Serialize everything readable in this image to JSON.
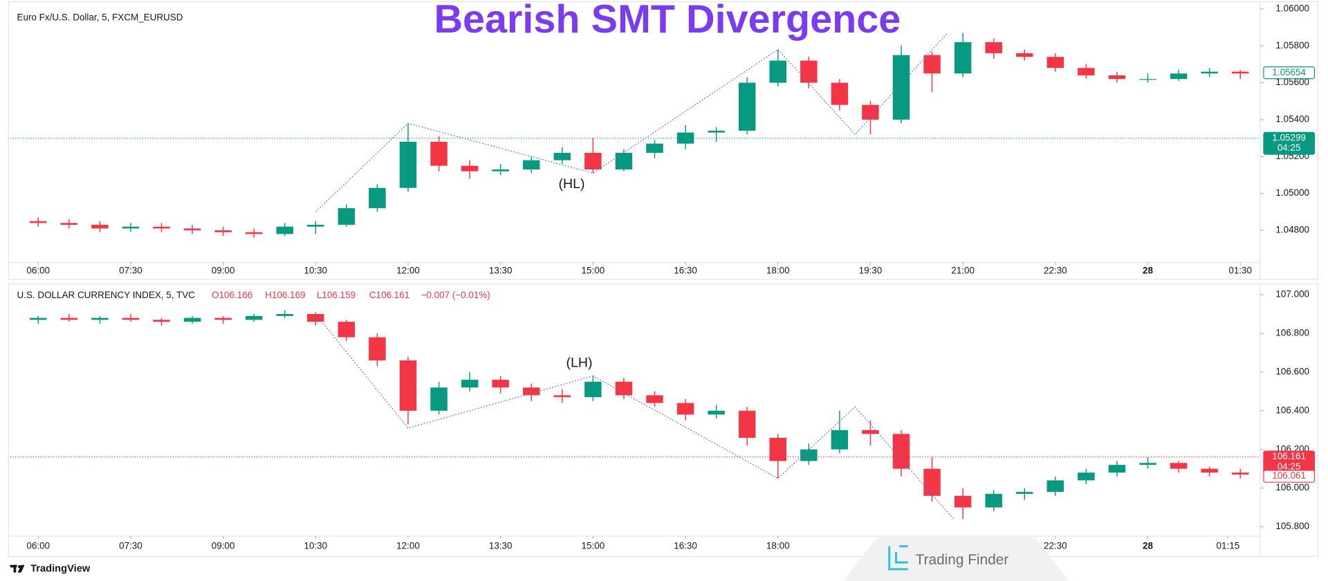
{
  "title": "Bearish SMT Divergence",
  "footer": {
    "brand": "TradingView",
    "watermark": "Trading Finder"
  },
  "chart_data": [
    {
      "type": "candlestick",
      "title": "Euro Fx/U.S. Dollar, 5, FXCM_EURUSD",
      "up_color": "#089981",
      "down_color": "#f23645",
      "line_color": "#5b6ee1",
      "grid": false,
      "xlim": [
        0.09,
        40.62
      ],
      "ylim": [
        1.0463,
        1.0603
      ],
      "yticks": [
        {
          "value": 1.048,
          "label": "1.04800"
        },
        {
          "value": 1.05,
          "label": "1.05000"
        },
        {
          "value": 1.052,
          "label": "1.05200"
        },
        {
          "value": 1.054,
          "label": "1.05400"
        },
        {
          "value": 1.056,
          "label": "1.05600"
        },
        {
          "value": 1.058,
          "label": "1.05800"
        },
        {
          "value": 1.06,
          "label": "1.06000"
        }
      ],
      "xticks": [
        {
          "value": 1,
          "label": "06:00"
        },
        {
          "value": 4,
          "label": "07:30"
        },
        {
          "value": 7,
          "label": "09:00"
        },
        {
          "value": 10,
          "label": "10:30"
        },
        {
          "value": 13,
          "label": "12:00"
        },
        {
          "value": 16,
          "label": "13:30"
        },
        {
          "value": 19,
          "label": "15:00"
        },
        {
          "value": 22,
          "label": "16:30"
        },
        {
          "value": 25,
          "label": "18:00"
        },
        {
          "value": 28,
          "label": "19:30"
        },
        {
          "value": 31,
          "label": "21:00"
        },
        {
          "value": 34,
          "label": "22:30"
        },
        {
          "value": 37,
          "label": "28"
        },
        {
          "value": 40,
          "label": "01:30"
        }
      ],
      "x": [
        1,
        2,
        3,
        4,
        5,
        6,
        7,
        8,
        9,
        10,
        11,
        12,
        13,
        14,
        15,
        16,
        17,
        18,
        19,
        20,
        21,
        22,
        23,
        24,
        25,
        26,
        27,
        28,
        29,
        30,
        31,
        32,
        33,
        34,
        35,
        36,
        37,
        38,
        39,
        40
      ],
      "ohlc": [
        [
          1.0485,
          1.0487,
          1.0482,
          1.0484
        ],
        [
          1.0484,
          1.0486,
          1.0481,
          1.0483
        ],
        [
          1.0483,
          1.0485,
          1.0479,
          1.0481
        ],
        [
          1.0481,
          1.0484,
          1.0479,
          1.0482
        ],
        [
          1.0482,
          1.0484,
          1.0479,
          1.0481
        ],
        [
          1.0481,
          1.0483,
          1.0478,
          1.048
        ],
        [
          1.048,
          1.0482,
          1.0477,
          1.0479
        ],
        [
          1.0479,
          1.0481,
          1.0476,
          1.0478
        ],
        [
          1.0478,
          1.0484,
          1.0477,
          1.0482
        ],
        [
          1.0482,
          1.0485,
          1.0478,
          1.0483
        ],
        [
          1.0483,
          1.0494,
          1.0482,
          1.0492
        ],
        [
          1.0492,
          1.0505,
          1.049,
          1.0503
        ],
        [
          1.0503,
          1.0538,
          1.0501,
          1.0528
        ],
        [
          1.0528,
          1.0531,
          1.0512,
          1.0515
        ],
        [
          1.0515,
          1.0518,
          1.0508,
          1.0512
        ],
        [
          1.0512,
          1.0516,
          1.051,
          1.0513
        ],
        [
          1.0513,
          1.052,
          1.0511,
          1.0518
        ],
        [
          1.0518,
          1.0525,
          1.0516,
          1.0522
        ],
        [
          1.0522,
          1.053,
          1.0511,
          1.0513
        ],
        [
          1.0513,
          1.0524,
          1.0512,
          1.0522
        ],
        [
          1.0522,
          1.0529,
          1.0519,
          1.0527
        ],
        [
          1.0527,
          1.0537,
          1.0524,
          1.0533
        ],
        [
          1.0533,
          1.0536,
          1.0528,
          1.0534
        ],
        [
          1.0534,
          1.0563,
          1.0532,
          1.056
        ],
        [
          1.056,
          1.0578,
          1.0558,
          1.0572
        ],
        [
          1.0572,
          1.0574,
          1.0557,
          1.056
        ],
        [
          1.056,
          1.0562,
          1.0545,
          1.0548
        ],
        [
          1.0548,
          1.055,
          1.0532,
          1.054
        ],
        [
          1.054,
          1.058,
          1.0538,
          1.0575
        ],
        [
          1.0575,
          1.0577,
          1.0555,
          1.0565
        ],
        [
          1.0565,
          1.0587,
          1.0563,
          1.0582
        ],
        [
          1.0582,
          1.0584,
          1.0573,
          1.0576
        ],
        [
          1.0576,
          1.0578,
          1.0572,
          1.0574
        ],
        [
          1.0574,
          1.0576,
          1.0566,
          1.0568
        ],
        [
          1.0568,
          1.057,
          1.0562,
          1.0564
        ],
        [
          1.0564,
          1.0566,
          1.056,
          1.0562
        ],
        [
          1.0562,
          1.0565,
          1.056,
          1.0562
        ],
        [
          1.0562,
          1.0567,
          1.0561,
          1.0565
        ],
        [
          1.0565,
          1.0568,
          1.0563,
          1.0566
        ],
        [
          1.0566,
          1.0567,
          1.0562,
          1.0565
        ]
      ],
      "divergence_line": {
        "x": [
          10,
          13,
          19,
          25,
          27.5,
          30.5
        ],
        "y": [
          1.049,
          1.0538,
          1.0511,
          1.0578,
          1.0532,
          1.0587
        ]
      },
      "annotation": "(HL)",
      "price_markers": [
        {
          "value": 1.05654,
          "color": "#089981",
          "style": "outline"
        },
        {
          "value": 1.05299,
          "color": "#089981",
          "style": "filled",
          "countdown": "04:25",
          "line": true
        }
      ]
    },
    {
      "type": "candlestick",
      "title": "U.S. DOLLAR CURRENCY INDEX, 5, TVC",
      "readout": [
        "O106.166",
        "H106.169",
        "L106.159",
        "C106.161",
        "−0.007 (−0.01%)"
      ],
      "up_color": "#089981",
      "down_color": "#f23645",
      "line_color": "#5b6ee1",
      "grid": false,
      "xlim": [
        0.09,
        40.62
      ],
      "ylim": [
        105.756,
        107.048
      ],
      "yticks": [
        {
          "value": 105.8,
          "label": "105.800"
        },
        {
          "value": 106,
          "label": "106.000"
        },
        {
          "value": 106.2,
          "label": "106.200"
        },
        {
          "value": 106.4,
          "label": "106.400"
        },
        {
          "value": 106.6,
          "label": "106.600"
        },
        {
          "value": 106.8,
          "label": "106.800"
        },
        {
          "value": 107,
          "label": "107.000"
        }
      ],
      "xticks": [
        {
          "value": 1,
          "label": "06:00"
        },
        {
          "value": 4,
          "label": "07:30"
        },
        {
          "value": 7,
          "label": "09:00"
        },
        {
          "value": 10,
          "label": "10:30"
        },
        {
          "value": 13,
          "label": "12:00"
        },
        {
          "value": 16,
          "label": "13:30"
        },
        {
          "value": 19,
          "label": "15:00"
        },
        {
          "value": 22,
          "label": "16:30"
        },
        {
          "value": 25,
          "label": "18:00"
        },
        {
          "value": 34,
          "label": "22:30"
        },
        {
          "value": 37,
          "label": "28"
        },
        {
          "value": 39.6,
          "label": "01:15"
        }
      ],
      "x": [
        1,
        2,
        3,
        4,
        5,
        6,
        7,
        8,
        9,
        10,
        11,
        12,
        13,
        14,
        15,
        16,
        17,
        18,
        19,
        20,
        21,
        22,
        23,
        24,
        25,
        26,
        27,
        28,
        29,
        30,
        31,
        32,
        33,
        34,
        35,
        36,
        37,
        38,
        39,
        40
      ],
      "ohlc": [
        [
          106.87,
          106.89,
          106.85,
          106.88
        ],
        [
          106.88,
          106.9,
          106.86,
          106.87
        ],
        [
          106.87,
          106.89,
          106.85,
          106.88
        ],
        [
          106.88,
          106.9,
          106.86,
          106.87
        ],
        [
          106.87,
          106.88,
          106.84,
          106.86
        ],
        [
          106.86,
          106.89,
          106.85,
          106.88
        ],
        [
          106.88,
          106.89,
          106.85,
          106.87
        ],
        [
          106.87,
          106.9,
          106.86,
          106.89
        ],
        [
          106.89,
          106.92,
          106.88,
          106.9
        ],
        [
          106.9,
          106.91,
          106.84,
          106.86
        ],
        [
          106.86,
          106.87,
          106.76,
          106.78
        ],
        [
          106.78,
          106.8,
          106.63,
          106.66
        ],
        [
          106.66,
          106.68,
          106.33,
          106.4
        ],
        [
          106.4,
          106.55,
          106.38,
          106.52
        ],
        [
          106.52,
          106.6,
          106.5,
          106.56
        ],
        [
          106.56,
          106.58,
          106.49,
          106.52
        ],
        [
          106.52,
          106.54,
          106.45,
          106.48
        ],
        [
          106.48,
          106.51,
          106.44,
          106.47
        ],
        [
          106.47,
          106.58,
          106.45,
          106.55
        ],
        [
          106.55,
          106.57,
          106.46,
          106.48
        ],
        [
          106.48,
          106.5,
          106.42,
          106.44
        ],
        [
          106.44,
          106.46,
          106.35,
          106.38
        ],
        [
          106.38,
          106.43,
          106.36,
          106.4
        ],
        [
          106.4,
          106.42,
          106.22,
          106.26
        ],
        [
          106.26,
          106.28,
          106.05,
          106.14
        ],
        [
          106.14,
          106.23,
          106.12,
          106.2
        ],
        [
          106.2,
          106.4,
          106.18,
          106.3
        ],
        [
          106.3,
          106.35,
          106.22,
          106.28
        ],
        [
          106.28,
          106.3,
          106.06,
          106.1
        ],
        [
          106.1,
          106.16,
          105.93,
          105.96
        ],
        [
          105.96,
          106,
          105.84,
          105.9
        ],
        [
          105.9,
          105.99,
          105.88,
          105.97
        ],
        [
          105.97,
          106,
          105.94,
          105.98
        ],
        [
          105.98,
          106.06,
          105.96,
          106.04
        ],
        [
          106.04,
          106.1,
          106.02,
          106.08
        ],
        [
          106.08,
          106.14,
          106.06,
          106.12
        ],
        [
          106.12,
          106.16,
          106.1,
          106.13
        ],
        [
          106.13,
          106.14,
          106.08,
          106.1
        ],
        [
          106.1,
          106.11,
          106.06,
          106.08
        ],
        [
          106.08,
          106.1,
          106.05,
          106.07
        ]
      ],
      "divergence_line": {
        "x": [
          10,
          13,
          19,
          25,
          27.5,
          30.7
        ],
        "y": [
          106.9,
          106.31,
          106.58,
          106.05,
          106.42,
          105.84
        ]
      },
      "annotation": "(LH)",
      "price_markers": [
        {
          "value": 106.161,
          "color": "#f23645",
          "style": "filled",
          "countdown": "04:25",
          "line": true
        },
        {
          "value": 106.061,
          "color": "#f23645",
          "style": "outline"
        }
      ]
    }
  ]
}
